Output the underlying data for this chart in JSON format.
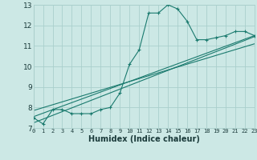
{
  "x": [
    0,
    1,
    2,
    3,
    4,
    5,
    6,
    7,
    8,
    9,
    10,
    11,
    12,
    13,
    14,
    15,
    16,
    17,
    18,
    19,
    20,
    21,
    22,
    23
  ],
  "line1": [
    7.5,
    7.2,
    7.9,
    7.9,
    7.7,
    7.7,
    7.7,
    7.9,
    8.0,
    8.7,
    10.1,
    10.8,
    12.6,
    12.6,
    13.0,
    12.8,
    12.2,
    11.3,
    11.3,
    11.4,
    11.5,
    11.7,
    11.7,
    11.5
  ],
  "line2_x": [
    0,
    23
  ],
  "line2_y": [
    7.55,
    11.5
  ],
  "line3_x": [
    0,
    23
  ],
  "line3_y": [
    7.85,
    11.1
  ],
  "line4_x": [
    0,
    23
  ],
  "line4_y": [
    7.25,
    11.45
  ],
  "color": "#1a7a6e",
  "bg_color": "#cce8e5",
  "grid_color": "#aacfcc",
  "xlabel": "Humidex (Indice chaleur)",
  "ylim": [
    7,
    13
  ],
  "xlim": [
    0,
    23
  ],
  "yticks": [
    7,
    8,
    9,
    10,
    11,
    12,
    13
  ],
  "xticks": [
    0,
    1,
    2,
    3,
    4,
    5,
    6,
    7,
    8,
    9,
    10,
    11,
    12,
    13,
    14,
    15,
    16,
    17,
    18,
    19,
    20,
    21,
    22,
    23
  ],
  "xlabel_fontsize": 7,
  "xtick_fontsize": 5,
  "ytick_fontsize": 6.5
}
